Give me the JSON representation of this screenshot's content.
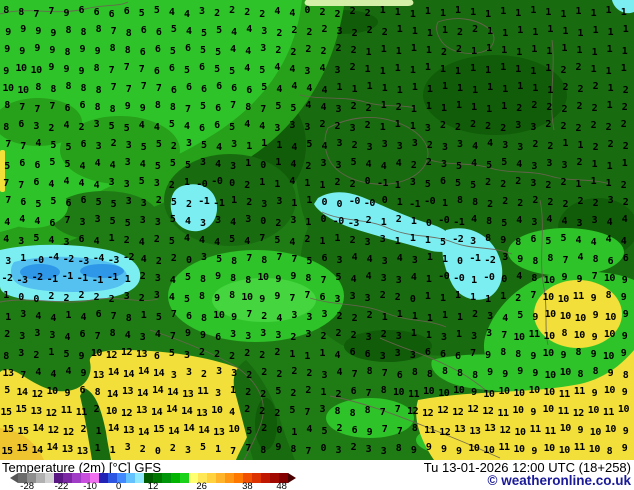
{
  "map": {
    "palette": {
      "greenBase": "#1f7c15",
      "greenDark": "#186c0f",
      "greenDarker": "#115c08",
      "greenMed": "#27a01a",
      "greenBright": "#2fc32a",
      "greenBrighter": "#45d53e",
      "paleStrip": "#d4efa8",
      "cyan": "#7beef2",
      "blueLight": "#54c1f0",
      "blue": "#2f97e8",
      "yellow": "#f2df39",
      "yellowDeep": "#eec52e",
      "border": "#6e6254",
      "numberColor": "#000000"
    },
    "grid_rows": [
      "8 8 7 7 9 6 6 6 6 5 5 4 4 3 2 2 2 2 4 4 0 2 2 2 2 1 1 1 1 1 1 1 1 1 1 1 1 1 1 1 1 1",
      "9 9 9 9 8 8 8 7 8 6 6 5 4 5 5 4 4 3 2 2 2 2 3 2 2 2 1 1 1 1 2 2 1 1 1 1 1 1 1 1 1 1",
      "9 9 9 9 8 9 9 8 8 6 6 5 6 5 5 4 4 3 2 2 2 2 2 2 1 1 1 1 1 2 2 1 1 1 1 1 1 1 1 1 1 1",
      "9 10 10 9 9 9 8 7 7 7 6 6 5 6 5 5 4 5 4 4 3 4 3 2 1 1 1 1 1 1 1 1 1 1 1 1 1 2 2 1 1 1",
      "10 10 8 8 8 8 8 7 7 7 7 6 6 6 6 6 6 5 4 4 4 4 1 1 1 1 1 1 1 1 1 1 1 1 1 1 1 2 2 2 1 2",
      "8 7 7 7 6 6 8 8 9 9 8 8 7 5 6 7 8 7 5 5 4 4 3 2 2 1 2 1 1 1 1 1 1 1 2 2 2 2 2 2 1 2",
      "8 6 3 2 4 2 3 5 5 4 4 5 4 6 6 5 4 4 3 3 3 2 2 3 2 1 1 1 3 2 2 2 2 2 3 3 2 2 2 2 2 2",
      "7 7 4 5 5 6 3 2 3 5 5 2 3 5 4 3 1 1 1 4 5 4 3 2 3 3 3 3 2 3 3 4 4 3 3 2 2 1 1 2 2 2",
      "5 6 6 5 5 4 4 4 3 4 5 5 5 3 4 3 1 0 1 4 2 3 3 5 4 4 4 2 2 3 5 4 5 5 4 3 3 3 2 1 1 1",
      "7 7 6 4 4 4 4 3 3 5 3 2 1 -0 -0 0 2 1 1 4 1 1 2 2 0 -1 1 3 5 6 5 5 2 2 2 3 2 2 1 1 1 2",
      "7 6 5 5 6 6 5 5 3 3 2 5 2 -1 -1 1 2 3 3 1 1 0 0 -0 -0 0 1 -1 -0 1 8 8 2 2 2 2 2 2 2 2 3 2",
      "4 4 4 6 7 3 3 5 5 3 3 5 4 3 3 4 3 0 2 3 1 0 -0 -3 2 1 2 1 0 -0 -1 4 8 5 4 3 4 4 3 3 4 4",
      "4 3 5 4 3 6 4 1 2 4 2 5 4 4 4 5 4 7 5 4 2 1 1 2 3 3 1 1 1 5 -2 3 8 9 8 6 5 5 4 4 4 4",
      "3 1 -0 -4 -2 -3 -4 -3 -2 4 2 2 0 3 5 8 7 8 7 7 5 6 3 4 4 3 4 3 1 1 0 -1 -2 3 9 8 8 7 4 8 6 6",
      "-2 -3 -2 -1 -1 -1 -1 -1 1 2 3 4 5 8 9 8 8 10 9 9 8 7 5 4 4 3 3 4 1 -0 -0 1 -0 0 4 8 10 9 9 7 10 9",
      "1 0 0 2 2 2 2 2 3 2 3 4 5 8 9 8 10 9 9 7 7 6 3 3 3 2 2 0 1 1 1 1 1 1 2 7 10 10 11 9 8 9",
      "1 3 4 4 1 4 6 7 8 1 5 7 6 8 10 9 7 2 4 3 3 3 2 2 2 1 1 1 1 1 1 2 3 4 5 9 10 10 10 9 10 9",
      "2 3 3 3 4 6 7 8 4 3 4 7 9 9 6 3 3 3 3 2 3 2 2 2 3 2 3 1 1 3 1 3 3 7 10 11 10 8 10 9 10 9",
      "8 3 2 1 5 9 10 12 12 13 6 5 3 2 2 2 2 2 2 1 1 1 4 6 6 3 3 3 6 6 6 7 9 8 8 9 10 9 8 9 10 9",
      "13 7 4 4 4 9 13 14 14 14 14 3 3 2 3 3 2 2 2 2 2 3 4 7 8 7 6 8 8 8 8 8 9 9 9 9 10 10 8 8 9 8",
      "5 14 12 10 9 6 8 14 13 14 14 14 13 11 3 1 2 2 5 2 2 1 2 6 7 8 10 11 10 10 10 9 10 10 10 10 10 11 11 9 10 9",
      "15 15 13 12 11 11 2 10 12 13 14 14 14 13 10 4 2 2 2 5 7 3 8 8 8 7 7 12 12 12 12 12 12 11 10 9 10 11 12 10 11 10",
      "15 15 14 12 12 2 1 14 13 14 15 14 14 14 13 10 5 2 0 1 4 5 2 6 9 7 7 8 11 12 13 13 13 12 10 11 11 10 9 10 10 9",
      "15 15 14 14 13 13 1 1 3 2 0 2 3 5 1 7 7 8 9 8 7 0 3 2 3 3 8 9 9 9 9 10 10 11 10 9 10 10 11 10 8 9"
    ]
  },
  "legend": {
    "title": "Temperature (2m) [°C] GFS",
    "datetime": "Tu 13-01-2026 12:00 UTC (18+258)",
    "copyright": "© weatheronline.co.uk",
    "copyright_color": "#1a1a99",
    "arrow_left_color": "#565656",
    "arrow_right_color": "#4a0000",
    "bar_colors": [
      "#6b6b6b",
      "#8e8e8e",
      "#b1b1b1",
      "#d2d2d2",
      "#5a1682",
      "#7c28a4",
      "#a03cc6",
      "#c850dc",
      "#f070f0",
      "#2222b4",
      "#2c55e2",
      "#4288ff",
      "#64c3ff",
      "#90e9ff",
      "#005a00",
      "#007800",
      "#00960a",
      "#00b400",
      "#1ad21a",
      "#ffff72",
      "#ffe756",
      "#ffd23e",
      "#ffb42a",
      "#ff9614",
      "#ff7800",
      "#f05000",
      "#dc3200",
      "#c01800",
      "#a00800",
      "#840000"
    ],
    "ticks": [
      {
        "label": "-28",
        "pos": 6
      },
      {
        "label": "-22",
        "pos": 18
      },
      {
        "label": "-10",
        "pos": 28
      },
      {
        "label": "0",
        "pos": 38
      },
      {
        "label": "12",
        "pos": 50
      },
      {
        "label": "26",
        "pos": 67
      },
      {
        "label": "38",
        "pos": 83
      },
      {
        "label": "48",
        "pos": 95
      }
    ]
  }
}
